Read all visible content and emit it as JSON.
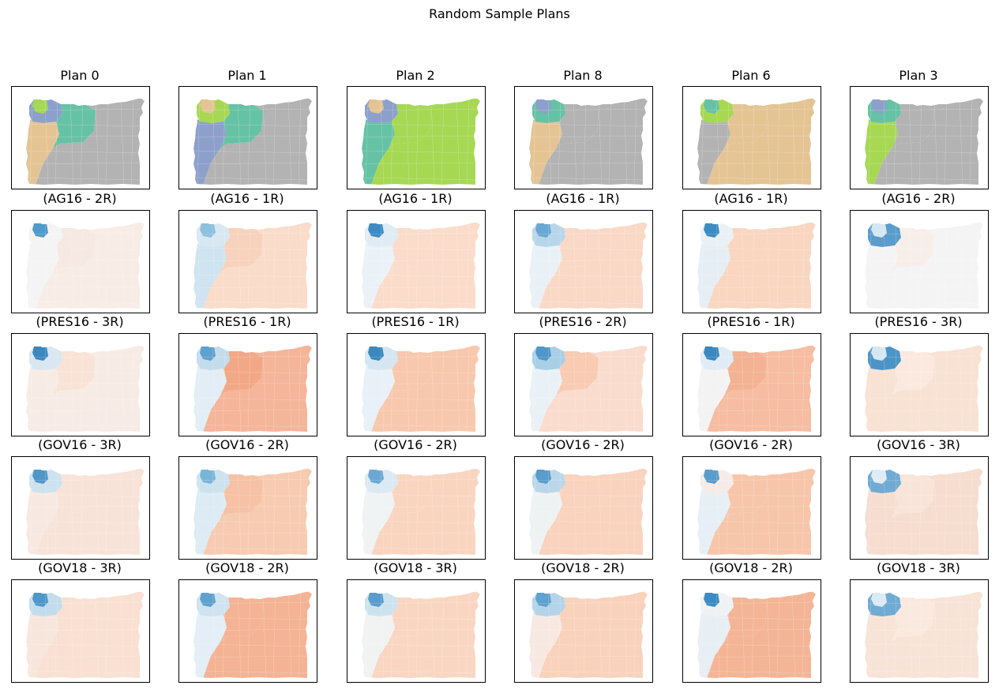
{
  "figure": {
    "suptitle": "Random Sample Plans",
    "rows": [
      {
        "kind": "plan",
        "cells": [
          {
            "title": "Plan 0",
            "palette": [
              "#a6d854",
              "#8da0cb",
              "#e5c494",
              "#66c2a5",
              "#b3b3b3"
            ]
          },
          {
            "title": "Plan 1",
            "palette": [
              "#e5c494",
              "#a6d854",
              "#8da0cb",
              "#66c2a5",
              "#b3b3b3"
            ]
          },
          {
            "title": "Plan 2",
            "palette": [
              "#e5c494",
              "#8da0cb",
              "#66c2a5",
              "#a6d854",
              "#a6d854"
            ]
          },
          {
            "title": "Plan 8",
            "palette": [
              "#8da0cb",
              "#66c2a5",
              "#e5c494",
              "#b3b3b3",
              "#b3b3b3"
            ]
          },
          {
            "title": "Plan 6",
            "palette": [
              "#66c2a5",
              "#a6d854",
              "#b3b3b3",
              "#e5c494",
              "#e5c494"
            ]
          },
          {
            "title": "Plan 3",
            "palette": [
              "#8da0cb",
              "#66c2a5",
              "#a6d854",
              "#b3b3b3",
              "#b3b3b3"
            ]
          }
        ]
      },
      {
        "kind": "election",
        "cells": [
          {
            "title": "(AG16 - 2R)",
            "palette": [
              "#4f9bcb",
              "#f4f4f4",
              "#f4f4f4",
              "#f6e8e2",
              "#f8ece6"
            ]
          },
          {
            "title": "(AG16 - 1R)",
            "palette": [
              "#8cc0de",
              "#d7e8f3",
              "#cfe3f0",
              "#f7d2bd",
              "#f9dcc9"
            ]
          },
          {
            "title": "(AG16 - 1R)",
            "palette": [
              "#3d8bc2",
              "#dfecf5",
              "#eaf2f8",
              "#fbdccb",
              "#fbdccb"
            ]
          },
          {
            "title": "(AG16 - 1R)",
            "palette": [
              "#6aa8d3",
              "#b8d6ea",
              "#eaf1f6",
              "#f9d9c6",
              "#f9d9c6"
            ]
          },
          {
            "title": "(AG16 - 1R)",
            "palette": [
              "#3d8bc2",
              "#eaf1f6",
              "#e6eef5",
              "#f9d6c0",
              "#f9d6c0"
            ]
          },
          {
            "title": "(AG16 - 2R)",
            "palette": [
              "#d6e7f2",
              "#5a9ccb",
              "#f4f4f4",
              "#f7eeea",
              "#f4f4f4"
            ]
          }
        ]
      },
      {
        "kind": "election",
        "cells": [
          {
            "title": "(PRES16 - 3R)",
            "palette": [
              "#3b88c0",
              "#d8e7f2",
              "#f7ebe5",
              "#f9e3d6",
              "#f7ebe5"
            ]
          },
          {
            "title": "(PRES16 - 1R)",
            "palette": [
              "#5fa1cf",
              "#c3dcec",
              "#e2edf5",
              "#f2a886",
              "#f5b59a"
            ]
          },
          {
            "title": "(PRES16 - 1R)",
            "palette": [
              "#3b88c0",
              "#d3e6f1",
              "#e8f1f7",
              "#f8c8ae",
              "#f8c8ae"
            ]
          },
          {
            "title": "(PRES16 - 2R)",
            "palette": [
              "#4f97c8",
              "#a8cfe6",
              "#eaf1f6",
              "#f8cbb2",
              "#f9dccd"
            ]
          },
          {
            "title": "(PRES16 - 1R)",
            "palette": [
              "#3b88c0",
              "#e0ecf5",
              "#f3f3f3",
              "#f3b293",
              "#f6bda2"
            ]
          },
          {
            "title": "(PRES16 - 3R)",
            "palette": [
              "#d7e7f2",
              "#4d94c6",
              "#f8e2d3",
              "#fbe9df",
              "#f8e2d3"
            ]
          }
        ]
      },
      {
        "kind": "election",
        "cells": [
          {
            "title": "(GOV16 - 3R)",
            "palette": [
              "#4f97c8",
              "#cde2ef",
              "#f7e9e2",
              "#f8e3d8",
              "#f8e3d8"
            ]
          },
          {
            "title": "(GOV16 - 2R)",
            "palette": [
              "#7ab5d9",
              "#cde2ef",
              "#dcebf4",
              "#f6c1a5",
              "#f7cbb1"
            ]
          },
          {
            "title": "(GOV16 - 2R)",
            "palette": [
              "#6aa8d3",
              "#dbe9f3",
              "#f0f3f3",
              "#f9d5c0",
              "#f9d5c0"
            ]
          },
          {
            "title": "(GOV16 - 2R)",
            "palette": [
              "#5a9ccb",
              "#bad7ea",
              "#eef2f3",
              "#f9d3be",
              "#f9d3be"
            ]
          },
          {
            "title": "(GOV16 - 2R)",
            "palette": [
              "#5a9ccb",
              "#f6ebe6",
              "#e6eff5",
              "#f7c6aa",
              "#f7c6aa"
            ]
          },
          {
            "title": "(GOV16 - 3R)",
            "palette": [
              "#e0ecf5",
              "#70abd3",
              "#f6ddd0",
              "#f8e4d9",
              "#f6ddd0"
            ]
          }
        ]
      },
      {
        "kind": "election",
        "cells": [
          {
            "title": "(GOV18 - 3R)",
            "palette": [
              "#4f97c8",
              "#c3dcec",
              "#f7e6dc",
              "#f9e0d2",
              "#f9e0d2"
            ]
          },
          {
            "title": "(GOV18 - 2R)",
            "palette": [
              "#5fa1cf",
              "#cfe3f0",
              "#e3eef6",
              "#f4b394",
              "#f4b394"
            ]
          },
          {
            "title": "(GOV18 - 3R)",
            "palette": [
              "#5a9ccb",
              "#cde2ef",
              "#f1f2f2",
              "#f9d6c2",
              "#f9d6c2"
            ]
          },
          {
            "title": "(GOV18 - 2R)",
            "palette": [
              "#5fa1cf",
              "#b3d4e8",
              "#f7e9e2",
              "#f9d2bb",
              "#f9d2bb"
            ]
          },
          {
            "title": "(GOV18 - 2R)",
            "palette": [
              "#3d8bc2",
              "#eef2f5",
              "#e7eef4",
              "#f4b596",
              "#f4b596"
            ]
          },
          {
            "title": "(GOV18 - 3R)",
            "palette": [
              "#dceaf3",
              "#70abd3",
              "#f8e3d7",
              "#fae9df",
              "#f8e3d7"
            ]
          }
        ]
      }
    ]
  }
}
